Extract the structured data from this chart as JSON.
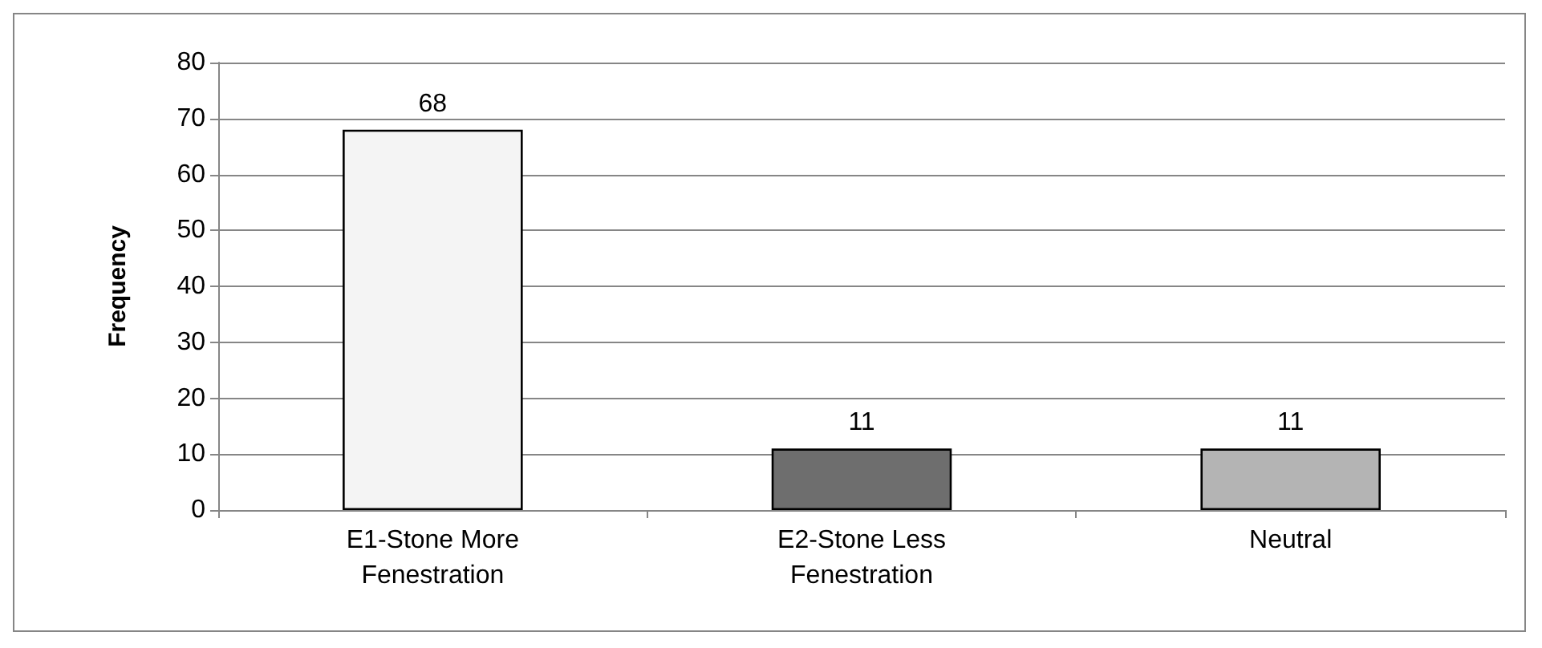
{
  "chart_data": {
    "type": "bar",
    "ylabel": "Frequency",
    "categories": [
      "E1-Stone More\nFenestration",
      "E2-Stone Less\nFenestration",
      "Neutral"
    ],
    "values": [
      68,
      11,
      11
    ],
    "colors": [
      "#f4f4f4",
      "#6e6e6e",
      "#b4b4b4"
    ],
    "ylim": [
      0,
      80
    ],
    "yticks": [
      0,
      10,
      20,
      30,
      40,
      50,
      60,
      70,
      80
    ],
    "grid": "y",
    "data_labels": true
  }
}
